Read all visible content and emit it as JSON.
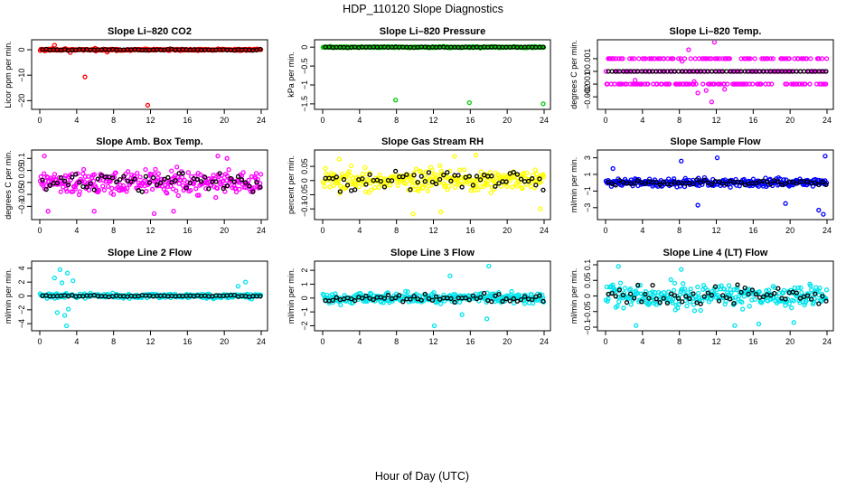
{
  "title": "HDP_110120  Slope Diagnostics",
  "xlabel": "Hour of Day (UTC)",
  "chart_data": [
    {
      "id": "co2",
      "type": "scatter",
      "title": "Slope Li–820 CO2",
      "ylabel": "Licor ppm per min.",
      "xlim": [
        0,
        24
      ],
      "ylim": [
        -22,
        2.5
      ],
      "xticks": [
        0,
        4,
        8,
        12,
        16,
        20,
        24
      ],
      "yticks": [
        0,
        -10,
        -20
      ],
      "color": "#ff0000",
      "base": 0,
      "spread": 0.35,
      "hourly_spread": 0.2,
      "outliers": [
        {
          "x": 4.9,
          "y": -10.7
        },
        {
          "x": 11.7,
          "y": -21.8
        },
        {
          "x": 1.6,
          "y": 1.8
        },
        {
          "x": 6.0,
          "y": 0.6
        },
        {
          "x": 7.3,
          "y": -0.9
        },
        {
          "x": 3.3,
          "y": -1.1
        }
      ]
    },
    {
      "id": "pressure",
      "type": "scatter",
      "title": "Slope Li–820 Pressure",
      "ylabel": "kPa per min.",
      "xlim": [
        0,
        24
      ],
      "ylim": [
        -1.55,
        0.1
      ],
      "xticks": [
        0,
        4,
        8,
        12,
        16,
        20,
        24
      ],
      "yticks": [
        0,
        -0.5,
        -1,
        -1.5
      ],
      "color": "#00cc00",
      "base": 0,
      "spread": 0.015,
      "hourly_spread": 0.01,
      "outliers": [
        {
          "x": 7.9,
          "y": -1.4
        },
        {
          "x": 15.9,
          "y": -1.47
        },
        {
          "x": 23.9,
          "y": -1.5
        }
      ]
    },
    {
      "id": "temp",
      "type": "scatter",
      "title": "Slope Li–820 Temp.",
      "ylabel": "degrees C per min.",
      "xlim": [
        0,
        24
      ],
      "ylim": [
        -0.0027,
        0.0022
      ],
      "xticks": [
        0,
        4,
        8,
        12,
        16,
        20,
        24
      ],
      "yticks": [
        0.001,
        0,
        -0.001,
        -0.002
      ],
      "color": "#ff00ff",
      "base": 0,
      "spread": 0,
      "hourly_spread": 0,
      "levels": [
        0.001,
        0,
        -0.001
      ],
      "outliers": [
        {
          "x": 9.0,
          "y": 0.0017
        },
        {
          "x": 10.0,
          "y": -0.0017
        },
        {
          "x": 11.8,
          "y": 0.0023
        },
        {
          "x": 11.5,
          "y": -0.0024
        },
        {
          "x": 12.9,
          "y": -0.0014
        },
        {
          "x": 8.3,
          "y": 0.0008
        },
        {
          "x": 10.9,
          "y": -0.0015
        },
        {
          "x": 3.2,
          "y": -0.0007
        },
        {
          "x": 9.6,
          "y": -0.0008
        }
      ]
    },
    {
      "id": "boxtemp",
      "type": "scatter",
      "title": "Slope Amb. Box Temp.",
      "ylabel": "degrees C per min.",
      "xlim": [
        0,
        24
      ],
      "ylim": [
        -0.14,
        0.12
      ],
      "xticks": [
        0,
        4,
        8,
        12,
        16,
        20,
        24
      ],
      "yticks": [
        0.1,
        0.05,
        0,
        -0.05,
        -0.1
      ],
      "color": "#ff00ff",
      "base": 0,
      "spread": 0.045,
      "hourly_spread": 0.035,
      "outliers": [
        {
          "x": 0.5,
          "y": 0.11
        },
        {
          "x": 19.3,
          "y": 0.11
        },
        {
          "x": 20.3,
          "y": 0.1
        },
        {
          "x": 5.9,
          "y": -0.12
        },
        {
          "x": 12.4,
          "y": -0.13
        },
        {
          "x": 14.5,
          "y": -0.12
        },
        {
          "x": 0.9,
          "y": -0.12
        }
      ]
    },
    {
      "id": "rh",
      "type": "scatter",
      "title": "Slope Gas Stream RH",
      "ylabel": "percent per min.",
      "xlim": [
        0,
        24
      ],
      "ylim": [
        -0.125,
        0.095
      ],
      "xticks": [
        0,
        4,
        8,
        12,
        16,
        20,
        24
      ],
      "yticks": [
        0.05,
        0,
        -0.05,
        -0.1
      ],
      "color": "#ffff00",
      "base": 0,
      "spread": 0.035,
      "hourly_spread": 0.03,
      "outliers": [
        {
          "x": 14.3,
          "y": 0.085
        },
        {
          "x": 16.6,
          "y": 0.09
        },
        {
          "x": 9.8,
          "y": -0.118
        },
        {
          "x": 12.8,
          "y": -0.11
        },
        {
          "x": 23.6,
          "y": -0.1
        },
        {
          "x": 1.8,
          "y": 0.075
        }
      ]
    },
    {
      "id": "sampleflow",
      "type": "scatter",
      "title": "Slope Sample Flow",
      "ylabel": "ml/min per min.",
      "xlim": [
        0,
        24
      ],
      "ylim": [
        -4,
        3.5
      ],
      "xticks": [
        0,
        4,
        8,
        12,
        16,
        20,
        24
      ],
      "yticks": [
        3,
        1,
        -1,
        -3
      ],
      "color": "#0000ff",
      "base": 0,
      "spread": 0.45,
      "hourly_spread": 0.3,
      "outliers": [
        {
          "x": 23.1,
          "y": -3.3
        },
        {
          "x": 23.6,
          "y": -3.8
        },
        {
          "x": 23.8,
          "y": 3.2
        },
        {
          "x": 12.1,
          "y": 3.0
        },
        {
          "x": 8.2,
          "y": 2.6
        },
        {
          "x": 10.0,
          "y": -2.7
        },
        {
          "x": 19.5,
          "y": -2.5
        },
        {
          "x": 0.8,
          "y": 1.7
        }
      ]
    },
    {
      "id": "line2",
      "type": "scatter",
      "title": "Slope Line 2 Flow",
      "ylabel": "ml/min per min.",
      "xlim": [
        0,
        24
      ],
      "ylim": [
        -4.5,
        4.5
      ],
      "xticks": [
        0,
        4,
        8,
        12,
        16,
        20,
        24
      ],
      "yticks": [
        4,
        2,
        0,
        -2,
        -4
      ],
      "color": "#00e5ee",
      "base": 0,
      "spread": 0.3,
      "hourly_spread": 0.1,
      "outliers": [
        {
          "x": 2.2,
          "y": 3.8
        },
        {
          "x": 3.0,
          "y": 3.3
        },
        {
          "x": 2.9,
          "y": -4.3
        },
        {
          "x": 2.7,
          "y": -2.8
        },
        {
          "x": 1.6,
          "y": 2.6
        },
        {
          "x": 3.6,
          "y": 2.2
        },
        {
          "x": 3.1,
          "y": -1.9
        },
        {
          "x": 1.9,
          "y": -2.4
        },
        {
          "x": 22.3,
          "y": 2.0
        },
        {
          "x": 21.5,
          "y": 1.4
        },
        {
          "x": 2.4,
          "y": 1.9
        }
      ]
    },
    {
      "id": "line3",
      "type": "scatter",
      "title": "Slope Line 3 Flow",
      "ylabel": "ml/min per min.",
      "xlim": [
        0,
        24
      ],
      "ylim": [
        -2.1,
        2.4
      ],
      "xticks": [
        0,
        4,
        8,
        12,
        16,
        20,
        24
      ],
      "yticks": [
        2,
        1,
        0,
        -1,
        -2
      ],
      "color": "#00e5ee",
      "base": 0,
      "spread": 0.35,
      "hourly_spread": 0.25,
      "outliers": [
        {
          "x": 18.0,
          "y": 2.3
        },
        {
          "x": 12.1,
          "y": -2.0
        },
        {
          "x": 17.8,
          "y": -1.5
        },
        {
          "x": 13.8,
          "y": 1.6
        },
        {
          "x": 15.1,
          "y": -1.2
        }
      ]
    },
    {
      "id": "line4",
      "type": "scatter",
      "title": "Slope Line 4 (LT) Flow",
      "ylabel": "ml/min per min.",
      "xlim": [
        0,
        24
      ],
      "ylim": [
        -0.1,
        0.1
      ],
      "xticks": [
        0,
        4,
        8,
        12,
        16,
        20,
        24
      ],
      "yticks": [
        0.1,
        0.05,
        0,
        -0.05,
        -0.1
      ],
      "color": "#00e5ee",
      "base": 0,
      "spread": 0.035,
      "hourly_spread": 0.03,
      "outliers": [
        {
          "x": 1.4,
          "y": 0.095
        },
        {
          "x": 3.3,
          "y": -0.095
        },
        {
          "x": 14.0,
          "y": -0.095
        },
        {
          "x": 16.6,
          "y": -0.09
        },
        {
          "x": 20.4,
          "y": -0.085
        },
        {
          "x": 8.2,
          "y": 0.085
        }
      ]
    }
  ]
}
